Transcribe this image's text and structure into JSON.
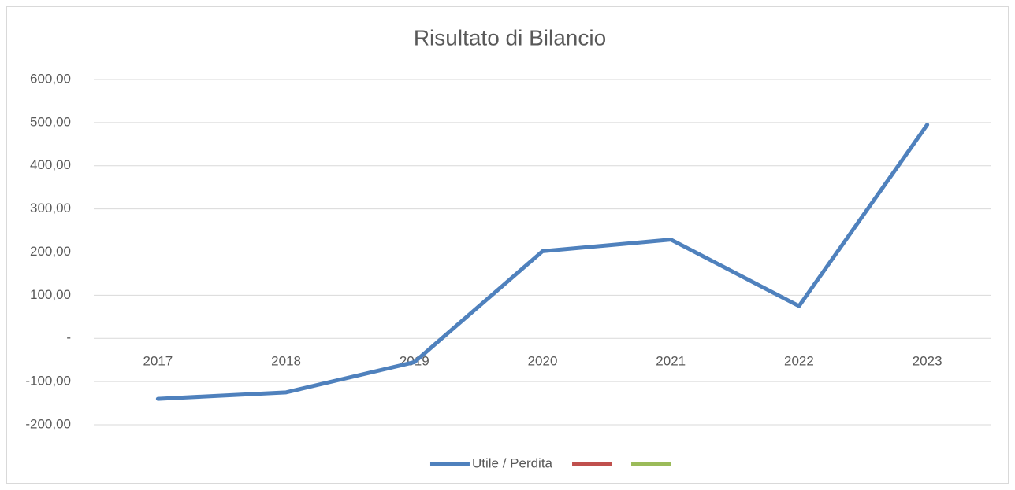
{
  "chart_data": {
    "type": "line",
    "title": "Risultato di Bilancio",
    "categories": [
      "2017",
      "2018",
      "2019",
      "2020",
      "2021",
      "2022",
      "2023"
    ],
    "series": [
      {
        "name": "Utile / Perdita",
        "color": "#4f81bd",
        "values": [
          -140,
          -125,
          -55,
          202,
          229,
          75,
          495
        ]
      },
      {
        "color": "#c0504d",
        "values": [
          null,
          null,
          null,
          null,
          null,
          null,
          null
        ]
      },
      {
        "color": "#9bbb59",
        "values": [
          null,
          null,
          null,
          null,
          null,
          null,
          null
        ]
      }
    ],
    "ylim": [
      -200,
      600
    ],
    "yticks": [
      {
        "value": -200,
        "label": "-200,00"
      },
      {
        "value": -100,
        "label": "-100,00"
      },
      {
        "value": 0,
        "label": "-"
      },
      {
        "value": 100,
        "label": "100,00"
      },
      {
        "value": 200,
        "label": "200,00"
      },
      {
        "value": 300,
        "label": "300,00"
      },
      {
        "value": 400,
        "label": "400,00"
      },
      {
        "value": 500,
        "label": "500,00"
      },
      {
        "value": 600,
        "label": "600,00"
      }
    ],
    "grid": true,
    "legend": "bottom"
  }
}
